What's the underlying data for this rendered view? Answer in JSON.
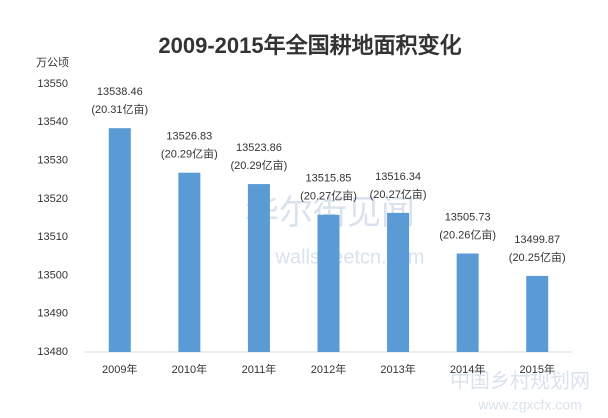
{
  "chart_data": {
    "type": "bar",
    "title": "2009-2015年全国耕地面积变化",
    "y_unit": "万公顷",
    "categories": [
      "2009年",
      "2010年",
      "2011年",
      "2012年",
      "2013年",
      "2014年",
      "2015年"
    ],
    "values": [
      13538.46,
      13526.83,
      13523.86,
      13515.85,
      13516.34,
      13505.73,
      13499.87
    ],
    "area_mu_labels": [
      "(20.31亿亩)",
      "(20.29亿亩)",
      "(20.29亿亩)",
      "(20.27亿亩)",
      "(20.27亿亩)",
      "(20.26亿亩)",
      "(20.25亿亩)"
    ],
    "color": "#5b9bd5",
    "ylim": [
      13480,
      13550
    ],
    "yticks": [
      13480,
      13490,
      13500,
      13510,
      13520,
      13530,
      13540,
      13550
    ],
    "grid": false
  },
  "watermarks": [
    "华尔街见闻",
    "wallstreetcn.com",
    "中国乡村规划网",
    "www.zgxcfx.com"
  ]
}
